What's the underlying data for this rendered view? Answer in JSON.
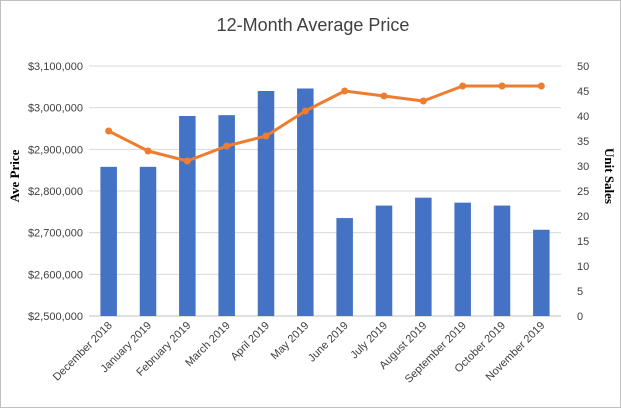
{
  "chart_data": {
    "type": "bar",
    "title": "12-Month Average Price",
    "ylabel": "Ave Price",
    "y2label": "Unit Sales",
    "categories": [
      "December 2018",
      "January 2019",
      "February 2019",
      "March 2019",
      "April 2019",
      "May 2019",
      "June 2019",
      "July 2019",
      "August 2019",
      "September 2019",
      "October 2019",
      "November 2019"
    ],
    "series": [
      {
        "kind": "bar",
        "axis": "left",
        "color": "#4472c4",
        "values": [
          2858000,
          2858000,
          2980000,
          2982000,
          3040000,
          3046000,
          2735000,
          2765000,
          2784000,
          2772000,
          2765000,
          2707000
        ]
      },
      {
        "kind": "line",
        "axis": "right",
        "color": "#ed7d31",
        "values": [
          37,
          33,
          31,
          34,
          36,
          41,
          45,
          44,
          43,
          46,
          46,
          46
        ]
      }
    ],
    "ylim": [
      2500000,
      3100000
    ],
    "yticks": [
      "$2,500,000",
      "$2,600,000",
      "$2,700,000",
      "$2,800,000",
      "$2,900,000",
      "$3,000,000",
      "$3,100,000"
    ],
    "y2lim": [
      0,
      50
    ],
    "y2ticks": [
      "0",
      "5",
      "10",
      "15",
      "20",
      "25",
      "30",
      "35",
      "40",
      "45",
      "50"
    ],
    "grid": true,
    "legend": "none"
  }
}
